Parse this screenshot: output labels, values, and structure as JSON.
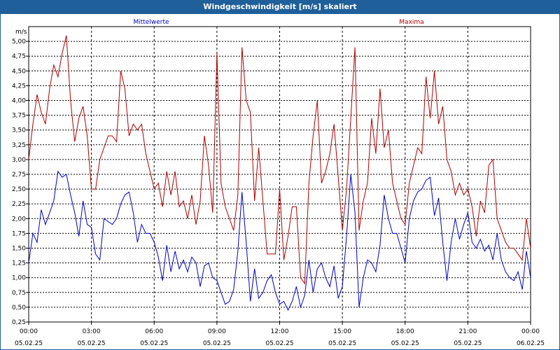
{
  "chart_data": {
    "type": "line",
    "title": "Windgeschwindigkeit [m/s] skaliert",
    "ylabel": "m/s",
    "ylim": [
      0.25,
      5.25
    ],
    "yticks": [
      "0,25",
      "0,50",
      "0,75",
      "1,00",
      "1,25",
      "1,50",
      "1,75",
      "2,00",
      "2,25",
      "2,50",
      "2,75",
      "3,00",
      "3,25",
      "3,50",
      "3,75",
      "4,00",
      "4,25",
      "4,50",
      "4,75",
      "5,00"
    ],
    "xlim": [
      0,
      24
    ],
    "xticks": [
      {
        "time": "00:00",
        "date": "05.02.25"
      },
      {
        "time": "03:00",
        "date": "05.02.25"
      },
      {
        "time": "06:00",
        "date": "05.02.25"
      },
      {
        "time": "09:00",
        "date": "05.02.25"
      },
      {
        "time": "12:00",
        "date": "05.02.25"
      },
      {
        "time": "15:00",
        "date": "05.02.25"
      },
      {
        "time": "18:00",
        "date": "05.02.25"
      },
      {
        "time": "21:00",
        "date": "05.02.25"
      },
      {
        "time": "00:00",
        "date": "06.02.25"
      }
    ],
    "grid": true,
    "series": [
      {
        "name": "Mittelwerte",
        "color": "#0000c8",
        "x": [
          0,
          0.2,
          0.4,
          0.6,
          0.8,
          1.0,
          1.2,
          1.4,
          1.6,
          1.8,
          2.0,
          2.2,
          2.4,
          2.6,
          2.8,
          3.0,
          3.2,
          3.4,
          3.6,
          3.8,
          4.0,
          4.2,
          4.4,
          4.6,
          4.8,
          5.0,
          5.2,
          5.4,
          5.6,
          5.8,
          6.0,
          6.2,
          6.4,
          6.6,
          6.8,
          7.0,
          7.2,
          7.4,
          7.6,
          7.8,
          8.0,
          8.2,
          8.4,
          8.6,
          8.8,
          9.0,
          9.2,
          9.4,
          9.6,
          9.8,
          10.0,
          10.2,
          10.4,
          10.6,
          10.8,
          11.0,
          11.2,
          11.4,
          11.6,
          11.8,
          12.0,
          12.2,
          12.4,
          12.6,
          12.8,
          13.0,
          13.2,
          13.4,
          13.6,
          13.8,
          14.0,
          14.2,
          14.4,
          14.6,
          14.8,
          15.0,
          15.2,
          15.4,
          15.6,
          15.8,
          16.0,
          16.2,
          16.4,
          16.6,
          16.8,
          17.0,
          17.2,
          17.4,
          17.6,
          17.8,
          18.0,
          18.2,
          18.4,
          18.6,
          18.8,
          19.0,
          19.2,
          19.4,
          19.6,
          19.8,
          20.0,
          20.2,
          20.4,
          20.6,
          20.8,
          21.0,
          21.2,
          21.4,
          21.6,
          21.8,
          22.0,
          22.2,
          22.4,
          22.6,
          22.8,
          23.0,
          23.2,
          23.4,
          23.6,
          23.8,
          24.0
        ],
        "values": [
          1.25,
          1.75,
          1.6,
          2.15,
          1.9,
          2.1,
          2.3,
          2.8,
          2.7,
          2.75,
          2.4,
          2.1,
          1.7,
          2.3,
          1.9,
          1.85,
          1.4,
          1.3,
          2.0,
          1.95,
          1.9,
          2.0,
          2.25,
          2.4,
          2.45,
          2.1,
          1.6,
          1.9,
          1.75,
          1.75,
          1.6,
          1.35,
          0.95,
          1.55,
          1.1,
          1.45,
          1.15,
          1.3,
          1.1,
          1.35,
          1.25,
          0.85,
          1.2,
          1.25,
          1.0,
          0.95,
          0.75,
          0.55,
          0.6,
          0.8,
          1.45,
          2.45,
          1.6,
          0.6,
          1.15,
          0.65,
          0.75,
          0.95,
          1.05,
          0.75,
          0.55,
          0.6,
          0.45,
          0.6,
          0.85,
          0.5,
          0.7,
          1.3,
          0.75,
          1.15,
          1.25,
          1.0,
          0.85,
          1.2,
          0.65,
          0.85,
          1.7,
          2.75,
          2.1,
          0.5,
          1.0,
          1.3,
          1.25,
          1.1,
          1.55,
          2.4,
          2.0,
          1.75,
          1.75,
          1.5,
          1.25,
          2.0,
          2.3,
          2.45,
          2.5,
          2.65,
          2.7,
          2.05,
          2.35,
          1.6,
          0.95,
          1.6,
          2.0,
          1.65,
          1.9,
          2.1,
          1.6,
          1.5,
          1.65,
          1.45,
          1.55,
          1.3,
          1.75,
          1.3,
          1.1,
          1.0,
          0.95,
          1.1,
          0.8,
          1.45,
          1.0
        ]
      },
      {
        "name": "Maxima",
        "color": "#b00000",
        "x": [
          0,
          0.2,
          0.4,
          0.6,
          0.8,
          1.0,
          1.2,
          1.4,
          1.6,
          1.8,
          2.0,
          2.2,
          2.4,
          2.6,
          2.8,
          3.0,
          3.2,
          3.4,
          3.6,
          3.8,
          4.0,
          4.2,
          4.4,
          4.6,
          4.8,
          5.0,
          5.2,
          5.4,
          5.6,
          5.8,
          6.0,
          6.2,
          6.4,
          6.6,
          6.8,
          7.0,
          7.2,
          7.4,
          7.6,
          7.8,
          8.0,
          8.2,
          8.4,
          8.6,
          8.8,
          9.0,
          9.2,
          9.4,
          9.6,
          9.8,
          10.0,
          10.2,
          10.4,
          10.6,
          10.8,
          11.0,
          11.2,
          11.4,
          11.6,
          11.8,
          12.0,
          12.2,
          12.4,
          12.6,
          12.8,
          13.0,
          13.2,
          13.4,
          13.6,
          13.8,
          14.0,
          14.2,
          14.4,
          14.6,
          14.8,
          15.0,
          15.2,
          15.4,
          15.6,
          15.8,
          16.0,
          16.2,
          16.4,
          16.6,
          16.8,
          17.0,
          17.2,
          17.4,
          17.6,
          17.8,
          18.0,
          18.2,
          18.4,
          18.6,
          18.8,
          19.0,
          19.2,
          19.4,
          19.6,
          19.8,
          20.0,
          20.2,
          20.4,
          20.6,
          20.8,
          21.0,
          21.2,
          21.4,
          21.6,
          21.8,
          22.0,
          22.2,
          22.4,
          22.6,
          22.8,
          23.0,
          23.2,
          23.4,
          23.6,
          23.8,
          24.0
        ],
        "values": [
          3.0,
          3.6,
          4.1,
          3.8,
          3.6,
          4.2,
          4.6,
          4.4,
          4.8,
          5.1,
          4.0,
          3.3,
          3.7,
          3.9,
          3.4,
          2.5,
          2.5,
          3.0,
          3.2,
          3.4,
          3.4,
          3.3,
          4.5,
          4.2,
          3.4,
          3.6,
          3.5,
          3.6,
          3.1,
          2.8,
          2.5,
          2.6,
          2.2,
          2.8,
          2.4,
          2.8,
          2.2,
          2.3,
          2.0,
          2.4,
          1.9,
          2.3,
          3.4,
          2.9,
          2.1,
          4.8,
          2.6,
          2.2,
          2.0,
          1.8,
          2.4,
          4.9,
          4.0,
          3.8,
          2.3,
          3.2,
          2.3,
          1.4,
          1.4,
          1.4,
          2.5,
          1.3,
          1.7,
          2.2,
          2.2,
          1.0,
          0.9,
          2.6,
          3.4,
          4.0,
          2.6,
          2.8,
          3.1,
          3.6,
          2.7,
          1.8,
          2.5,
          3.7,
          4.9,
          1.8,
          2.3,
          2.6,
          3.7,
          3.1,
          4.2,
          3.2,
          3.5,
          2.6,
          2.3,
          2.0,
          1.9,
          2.6,
          2.9,
          3.2,
          3.1,
          4.4,
          3.7,
          4.5,
          3.6,
          3.9,
          3.0,
          2.8,
          2.4,
          2.6,
          2.4,
          2.5,
          2.2,
          1.7,
          2.3,
          2.1,
          2.9,
          3.0,
          2.0,
          1.8,
          1.6,
          1.5,
          1.5,
          1.4,
          1.3,
          2.0,
          1.5
        ]
      }
    ]
  }
}
